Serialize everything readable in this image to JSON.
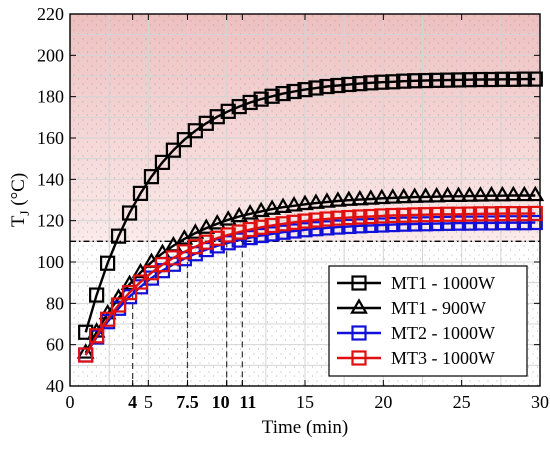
{
  "chart_data": {
    "type": "line",
    "xlabel": "Time (min)",
    "ylabel_main": "T",
    "ylabel_sub": "J",
    "ylabel_unit": " (°C)",
    "xlim": [
      0,
      30
    ],
    "ylim": [
      40,
      220
    ],
    "xticks": [
      0,
      5,
      15,
      20,
      25,
      30
    ],
    "xticks_bold": [
      4,
      7.5,
      10,
      11
    ],
    "xtick_labels": {
      "0": "0",
      "5": "5",
      "15": "15",
      "20": "20",
      "25": "25",
      "30": "30",
      "4": "4",
      "7.5": "7.5",
      "10": "10",
      "11": "11"
    },
    "yticks": [
      40,
      60,
      80,
      100,
      120,
      140,
      160,
      180,
      200,
      220
    ],
    "grid": true,
    "threshold": 110,
    "shaded_region": [
      110,
      220
    ],
    "markers_vertical": [
      {
        "x": 4,
        "y": 85
      },
      {
        "x": 7.5,
        "y": 100
      },
      {
        "x": 10,
        "y": 110
      },
      {
        "x": 11,
        "y": 110
      }
    ],
    "legend_position": "lower-right",
    "x": [
      1,
      1.7,
      2.4,
      3.1,
      3.8,
      4.5,
      5.2,
      5.9,
      6.6,
      7.3,
      8,
      8.7,
      9.4,
      10.1,
      10.8,
      11.5,
      12.2,
      12.9,
      13.6,
      14.3,
      15,
      15.7,
      16.4,
      17.1,
      17.8,
      18.5,
      19.2,
      19.9,
      20.6,
      21.3,
      22,
      22.7,
      23.4,
      24.1,
      24.8,
      25.5,
      26.2,
      26.9,
      27.6,
      28.3,
      29,
      29.7
    ],
    "series": [
      {
        "name": "MT1 - 1000W",
        "marker": "square",
        "color": "#000000",
        "values": [
          66.0,
          84.0,
          99.4,
          112.5,
          123.7,
          133.2,
          141.3,
          148.2,
          154.1,
          159.2,
          163.5,
          167.1,
          170.3,
          172.9,
          175.2,
          177.2,
          178.8,
          180.2,
          181.5,
          182.5,
          183.4,
          184.2,
          184.9,
          185.4,
          185.9,
          186.3,
          186.7,
          187.0,
          187.2,
          187.5,
          187.7,
          187.8,
          187.9,
          188.0,
          188.1,
          188.2,
          188.3,
          188.3,
          188.4,
          188.4,
          188.5,
          188.5
        ]
      },
      {
        "name": "MT1 - 900W",
        "marker": "triangle",
        "color": "#000000",
        "values": [
          56.0,
          66.2,
          75.0,
          82.6,
          89.2,
          94.9,
          99.9,
          104.2,
          107.9,
          111.2,
          114.0,
          116.4,
          118.5,
          120.4,
          122.0,
          123.3,
          124.5,
          125.6,
          126.5,
          127.2,
          127.9,
          128.5,
          129.0,
          129.5,
          129.9,
          130.2,
          130.5,
          130.8,
          131.0,
          131.2,
          131.4,
          131.5,
          131.6,
          131.8,
          131.8,
          131.9,
          132.0,
          132.1,
          132.1,
          132.2,
          132.2,
          132.2
        ]
      },
      {
        "name": "MT2 - 1000W",
        "marker": "square",
        "color": "#1010d8",
        "values": [
          55.0,
          63.7,
          71.1,
          77.6,
          83.2,
          88.0,
          92.2,
          95.8,
          98.9,
          101.6,
          104.0,
          106.0,
          107.8,
          109.3,
          110.6,
          111.8,
          112.8,
          113.6,
          114.4,
          115.0,
          115.6,
          116.1,
          116.5,
          116.9,
          117.2,
          117.5,
          117.7,
          117.9,
          118.1,
          118.3,
          118.4,
          118.5,
          118.6,
          118.7,
          118.8,
          118.8,
          118.9,
          118.9,
          119.0,
          119.0,
          119.0,
          119.1
        ]
      },
      {
        "name": "MT3 - 1000W",
        "marker": "square",
        "color": "#e01010",
        "values": [
          55.0,
          64.3,
          72.3,
          79.2,
          85.2,
          90.3,
          94.8,
          98.7,
          102.0,
          104.9,
          107.4,
          109.6,
          111.5,
          113.1,
          114.5,
          115.7,
          116.8,
          117.7,
          118.5,
          119.2,
          119.8,
          120.3,
          120.8,
          121.2,
          121.5,
          121.8,
          122.0,
          122.3,
          122.5,
          122.6,
          122.8,
          122.9,
          123.0,
          123.1,
          123.1,
          123.2,
          123.3,
          123.3,
          123.4,
          123.4,
          123.4,
          123.5
        ]
      }
    ]
  }
}
